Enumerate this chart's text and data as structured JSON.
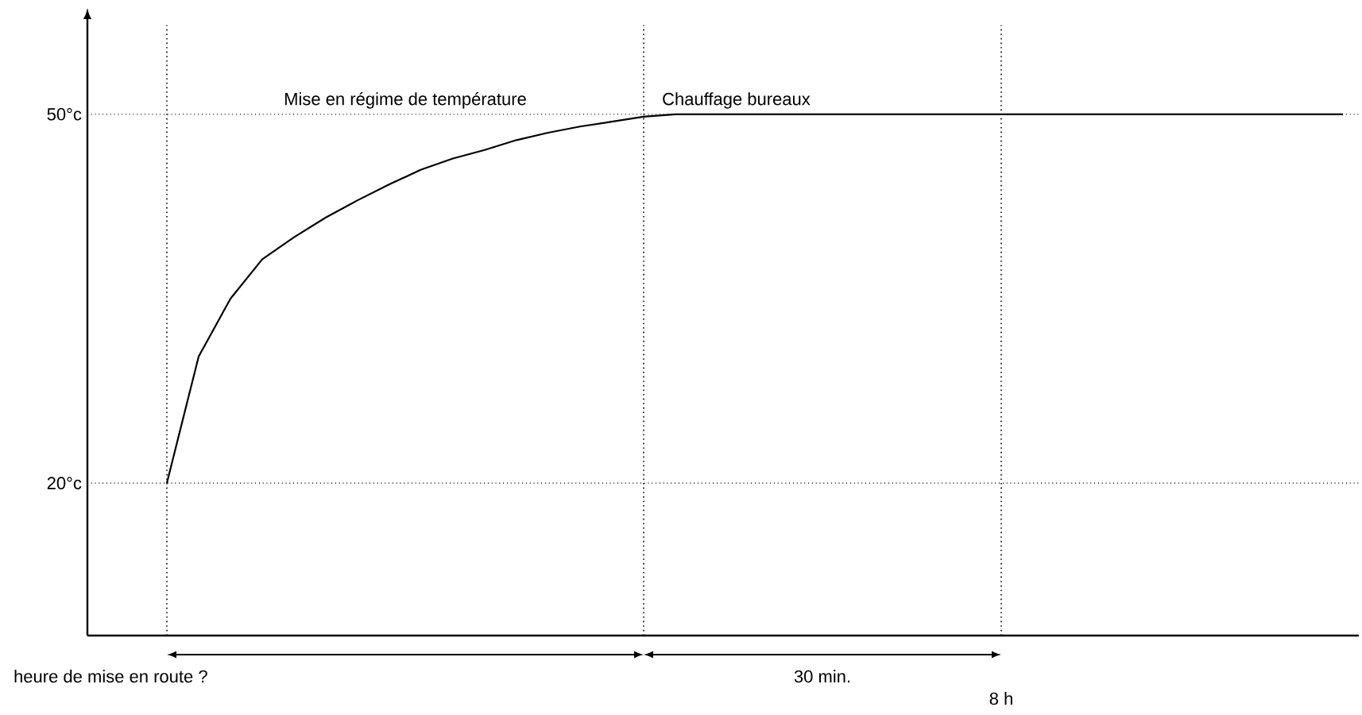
{
  "chart_data": {
    "type": "line",
    "categories": [
      null,
      null,
      null,
      null,
      null,
      null,
      null,
      null,
      null,
      null,
      null,
      null,
      null,
      null,
      null,
      null,
      null,
      null,
      null,
      null,
      null,
      null,
      null,
      null,
      null,
      null,
      null,
      null,
      null,
      null,
      null,
      null,
      null,
      null,
      null,
      null,
      null,
      null,
      null,
      null
    ],
    "series": [
      {
        "color": "#000000",
        "values": [
          null,
          null,
          20,
          30.3,
          35,
          38.2,
          40,
          41.6,
          43,
          44.3,
          45.5,
          46.4,
          47.1,
          47.9,
          48.5,
          49,
          49.4,
          49.8,
          50,
          50,
          50,
          50,
          50,
          50,
          50,
          50,
          50,
          50,
          50,
          50,
          50,
          50,
          50,
          50,
          50,
          50,
          50,
          50,
          50,
          50
        ]
      }
    ],
    "ylim": [
      7.6,
      58
    ],
    "yticks": [
      {
        "value": 20,
        "label": "20°c"
      },
      {
        "value": 50,
        "label": "50°c"
      }
    ],
    "grid": "y",
    "line_style": "solid",
    "marker": "none",
    "annotations": [
      "Mise en régime de température",
      "Chauffage bureaux",
      "heure de mise en route ?",
      "30 min.",
      "8 h"
    ]
  }
}
